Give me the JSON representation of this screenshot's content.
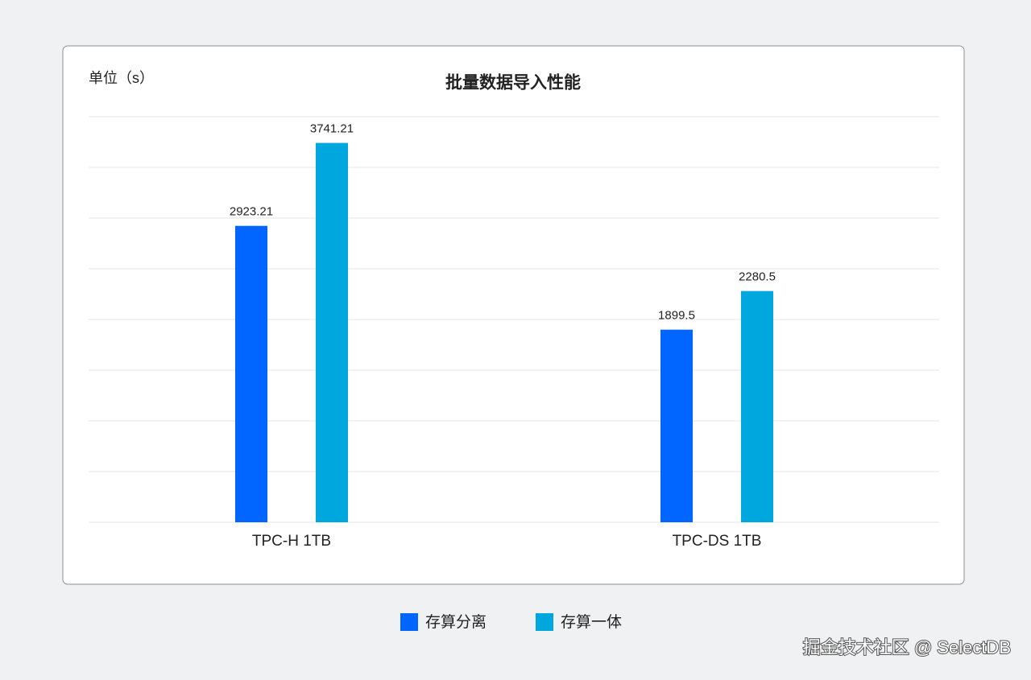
{
  "chart_data": {
    "type": "bar",
    "title": "批量数据导入性能",
    "y_label": "单位（s）",
    "categories": [
      "TPC-H 1TB",
      "TPC-DS 1TB"
    ],
    "series": [
      {
        "name": "存算分离",
        "color": "#0066ff",
        "values": [
          2923.21,
          1899.5
        ]
      },
      {
        "name": "存算一体",
        "color": "#00a6de",
        "values": [
          3741.21,
          2280.5
        ]
      }
    ],
    "ylim": [
      0,
      4000
    ],
    "yticks": [
      0,
      500,
      1000,
      1500,
      2000,
      2500,
      3000,
      3500,
      4000
    ],
    "grid": true
  },
  "watermark": "掘金技术社区 @ SelectDB"
}
